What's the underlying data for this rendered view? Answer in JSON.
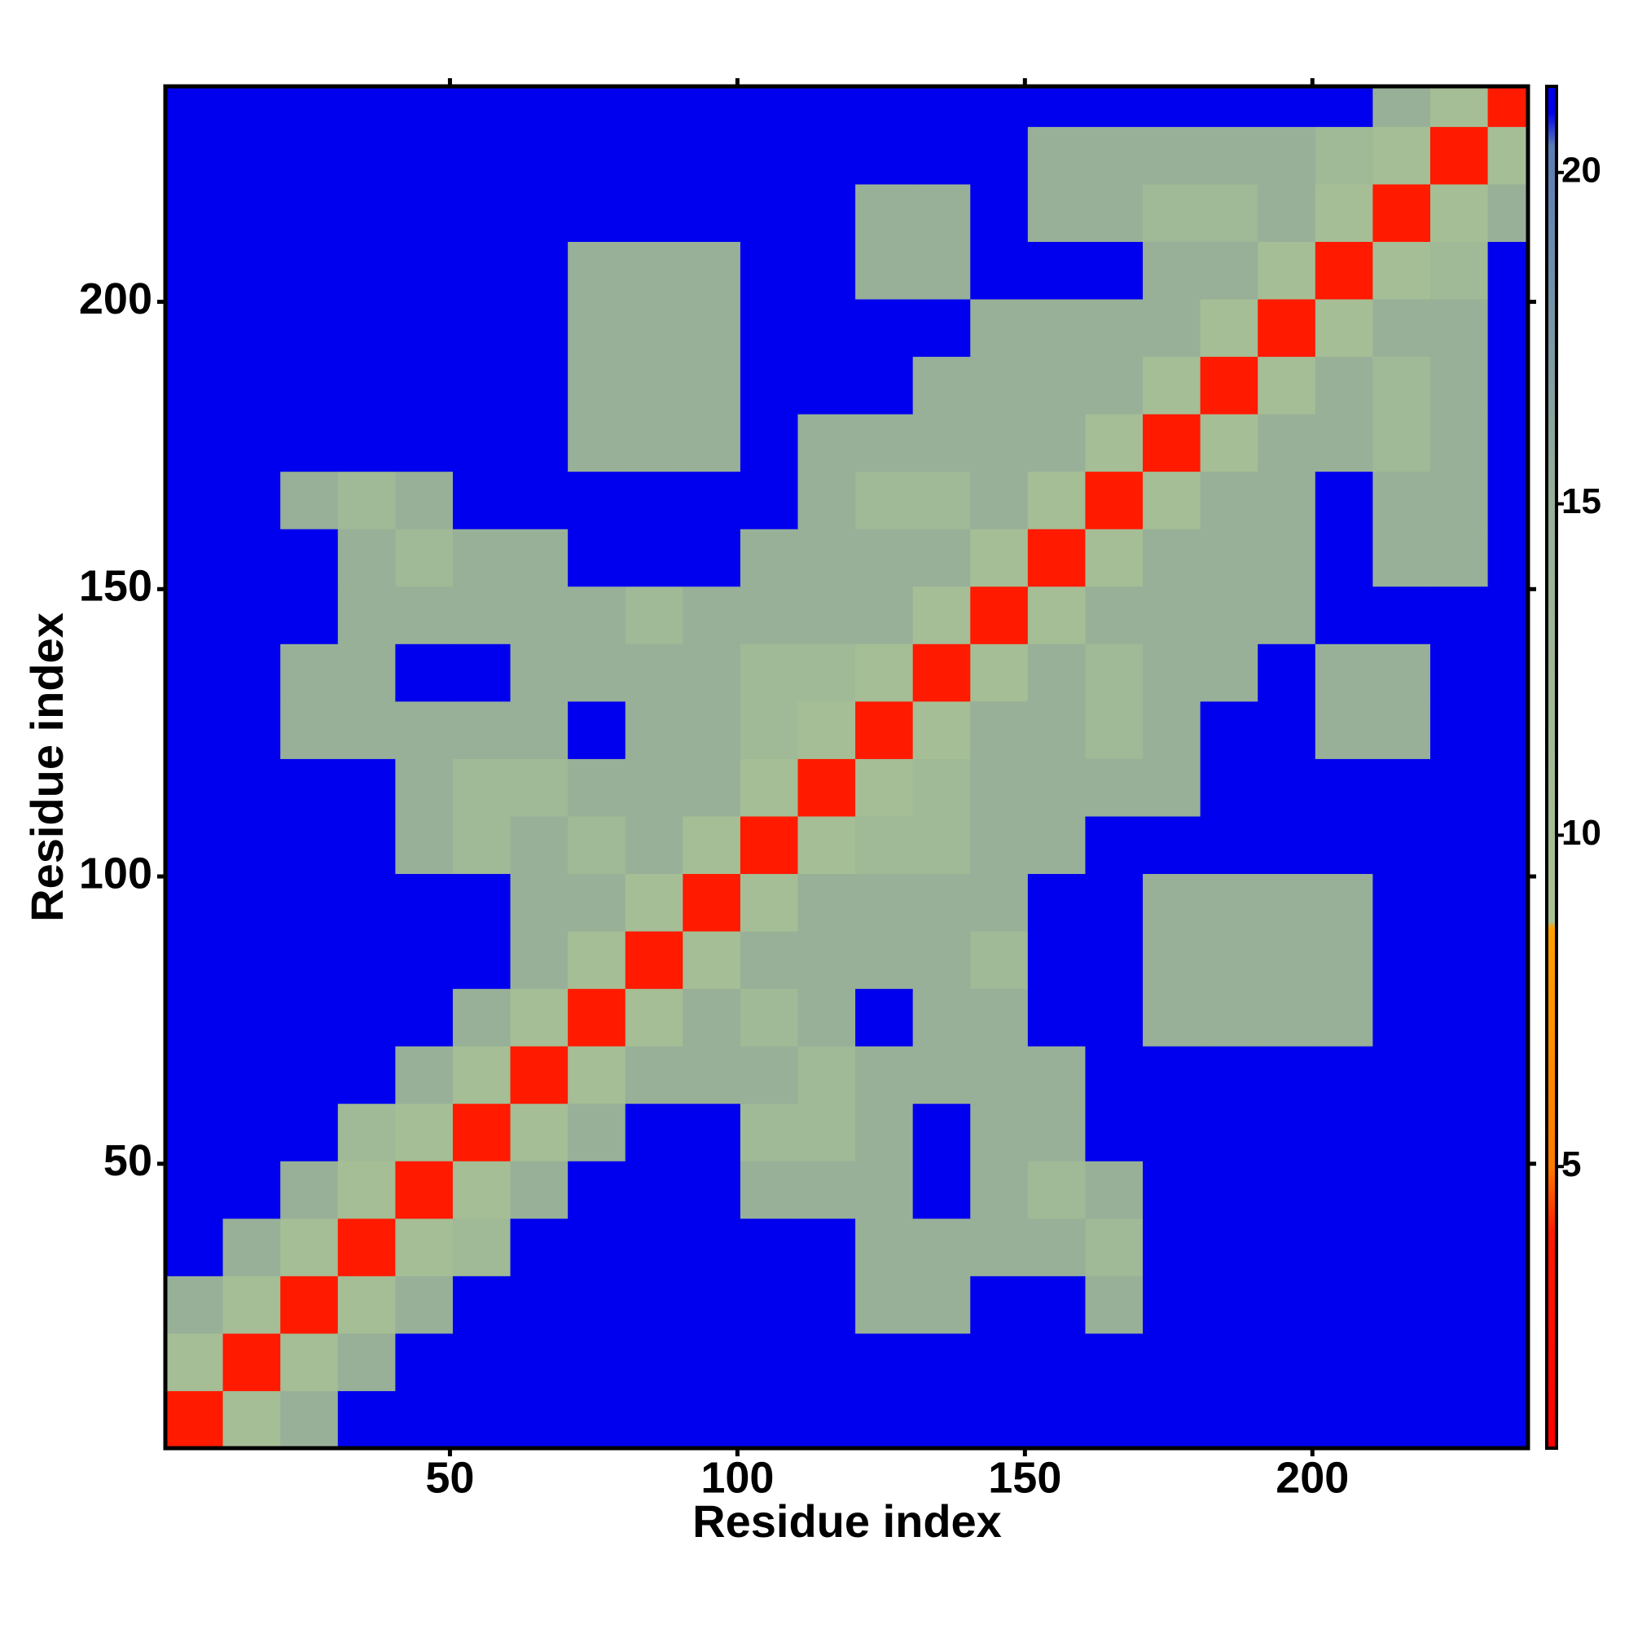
{
  "chart_data": {
    "type": "heatmap",
    "xlabel": "Residue index",
    "ylabel": "Residue index",
    "x_bins": [
      0.5,
      10.5,
      20.5,
      30.5,
      40.5,
      50.5,
      60.5,
      70.5,
      80.5,
      90.5,
      100.5,
      110.5,
      120.5,
      130.5,
      140.5,
      150.5,
      160.5,
      170.5,
      180.5,
      190.5,
      200.5,
      210.5,
      220.5,
      230.5,
      237.5
    ],
    "y_bins": [
      0.5,
      10.5,
      20.5,
      30.5,
      40.5,
      50.5,
      60.5,
      70.5,
      80.5,
      90.5,
      100.5,
      110.5,
      120.5,
      130.5,
      140.5,
      150.5,
      160.5,
      170.5,
      180.5,
      190.5,
      200.5,
      210.5,
      220.5,
      230.5,
      237.5
    ],
    "xlim": [
      0.5,
      237.5
    ],
    "ylim": [
      0.5,
      237.5
    ],
    "xticks": [
      50,
      100,
      150,
      200
    ],
    "yticks": [
      50,
      100,
      150,
      200
    ],
    "zlim": [
      0.75,
      21.3
    ],
    "zticks": [
      5,
      10,
      15,
      20
    ],
    "colorscale": [
      [
        0.75,
        "#ff0000"
      ],
      [
        4,
        "#ff1a00"
      ],
      [
        5,
        "#ff7a00"
      ],
      [
        8.6,
        "#ffa000"
      ],
      [
        8.7,
        "#a8c294"
      ],
      [
        15,
        "#98b098"
      ],
      [
        20.4,
        "#5a7cb4"
      ],
      [
        20.9,
        "#0000ee"
      ],
      [
        21.3,
        "#0000ee"
      ]
    ],
    "z": [
      [
        4,
        10,
        15,
        21,
        21,
        21,
        21,
        21,
        21,
        21,
        21,
        21,
        21,
        21,
        21,
        21,
        21,
        21,
        21,
        21,
        21,
        21,
        21,
        21
      ],
      [
        10,
        4,
        10,
        15,
        21,
        21,
        21,
        21,
        21,
        21,
        21,
        21,
        21,
        21,
        21,
        21,
        21,
        21,
        21,
        21,
        21,
        21,
        21,
        21
      ],
      [
        15,
        10,
        4,
        10,
        15,
        21,
        21,
        21,
        21,
        21,
        21,
        21,
        15,
        15,
        21,
        21,
        15,
        21,
        21,
        21,
        21,
        21,
        21,
        21
      ],
      [
        21,
        15,
        10,
        4,
        10,
        12,
        21,
        21,
        21,
        21,
        21,
        21,
        15,
        15,
        15,
        15,
        12,
        21,
        21,
        21,
        21,
        21,
        21,
        21
      ],
      [
        21,
        21,
        15,
        10,
        4,
        10,
        15,
        21,
        21,
        21,
        15,
        15,
        15,
        21,
        15,
        12,
        15,
        21,
        21,
        21,
        21,
        21,
        21,
        21
      ],
      [
        21,
        21,
        21,
        12,
        10,
        4,
        10,
        15,
        21,
        21,
        12,
        12,
        15,
        21,
        15,
        15,
        21,
        21,
        21,
        21,
        21,
        21,
        21,
        21
      ],
      [
        21,
        21,
        21,
        21,
        15,
        10,
        4,
        10,
        15,
        15,
        15,
        12,
        15,
        15,
        15,
        15,
        21,
        21,
        21,
        21,
        21,
        21,
        21,
        21
      ],
      [
        21,
        21,
        21,
        21,
        21,
        15,
        10,
        4,
        10,
        15,
        12,
        15,
        21,
        15,
        15,
        21,
        21,
        15,
        15,
        15,
        15,
        21,
        21,
        21
      ],
      [
        21,
        21,
        21,
        21,
        21,
        21,
        15,
        10,
        4,
        10,
        15,
        15,
        15,
        15,
        12,
        21,
        21,
        15,
        15,
        15,
        15,
        21,
        21,
        21
      ],
      [
        21,
        21,
        21,
        21,
        21,
        21,
        15,
        15,
        10,
        4,
        10,
        15,
        15,
        15,
        15,
        21,
        21,
        15,
        15,
        15,
        15,
        21,
        21,
        21
      ],
      [
        21,
        21,
        21,
        21,
        15,
        12,
        15,
        12,
        15,
        10,
        4,
        10,
        12,
        12,
        15,
        15,
        21,
        21,
        21,
        21,
        21,
        21,
        21,
        21
      ],
      [
        21,
        21,
        21,
        21,
        15,
        12,
        12,
        15,
        15,
        15,
        10,
        4,
        10,
        12,
        15,
        15,
        15,
        15,
        21,
        21,
        21,
        21,
        21,
        21
      ],
      [
        21,
        21,
        15,
        15,
        15,
        15,
        15,
        21,
        15,
        15,
        12,
        10,
        4,
        10,
        15,
        15,
        12,
        15,
        21,
        21,
        15,
        15,
        21,
        21
      ],
      [
        21,
        21,
        15,
        15,
        21,
        21,
        15,
        15,
        15,
        15,
        12,
        12,
        10,
        4,
        10,
        15,
        12,
        15,
        15,
        21,
        15,
        15,
        21,
        21
      ],
      [
        21,
        21,
        21,
        15,
        15,
        15,
        15,
        15,
        12,
        15,
        15,
        15,
        15,
        10,
        4,
        10,
        15,
        15,
        15,
        15,
        21,
        21,
        21,
        21
      ],
      [
        21,
        21,
        21,
        15,
        12,
        15,
        15,
        21,
        21,
        21,
        15,
        15,
        15,
        15,
        10,
        4,
        10,
        15,
        15,
        15,
        21,
        15,
        15,
        21
      ],
      [
        21,
        21,
        15,
        12,
        15,
        21,
        21,
        21,
        21,
        21,
        21,
        15,
        12,
        12,
        15,
        10,
        4,
        10,
        15,
        15,
        21,
        15,
        15,
        21
      ],
      [
        21,
        21,
        21,
        21,
        21,
        21,
        21,
        15,
        15,
        15,
        21,
        15,
        15,
        15,
        15,
        15,
        10,
        4,
        10,
        15,
        15,
        12,
        15,
        21
      ],
      [
        21,
        21,
        21,
        21,
        21,
        21,
        21,
        15,
        15,
        15,
        21,
        21,
        21,
        15,
        15,
        15,
        15,
        10,
        4,
        10,
        15,
        12,
        15,
        21
      ],
      [
        21,
        21,
        21,
        21,
        21,
        21,
        21,
        15,
        15,
        15,
        21,
        21,
        21,
        21,
        15,
        15,
        15,
        15,
        10,
        4,
        10,
        15,
        15,
        21
      ],
      [
        21,
        21,
        21,
        21,
        21,
        21,
        21,
        15,
        15,
        15,
        21,
        21,
        15,
        15,
        21,
        21,
        21,
        15,
        15,
        10,
        4,
        10,
        12,
        21
      ],
      [
        21,
        21,
        21,
        21,
        21,
        21,
        21,
        21,
        21,
        21,
        21,
        21,
        15,
        15,
        21,
        15,
        15,
        12,
        12,
        15,
        10,
        4,
        10,
        15
      ],
      [
        21,
        21,
        21,
        21,
        21,
        21,
        21,
        21,
        21,
        21,
        21,
        21,
        21,
        21,
        21,
        15,
        15,
        15,
        15,
        15,
        12,
        10,
        4,
        10
      ],
      [
        21,
        21,
        21,
        21,
        21,
        21,
        21,
        21,
        21,
        21,
        21,
        21,
        21,
        21,
        21,
        21,
        21,
        21,
        21,
        21,
        21,
        15,
        10,
        4
      ]
    ]
  }
}
